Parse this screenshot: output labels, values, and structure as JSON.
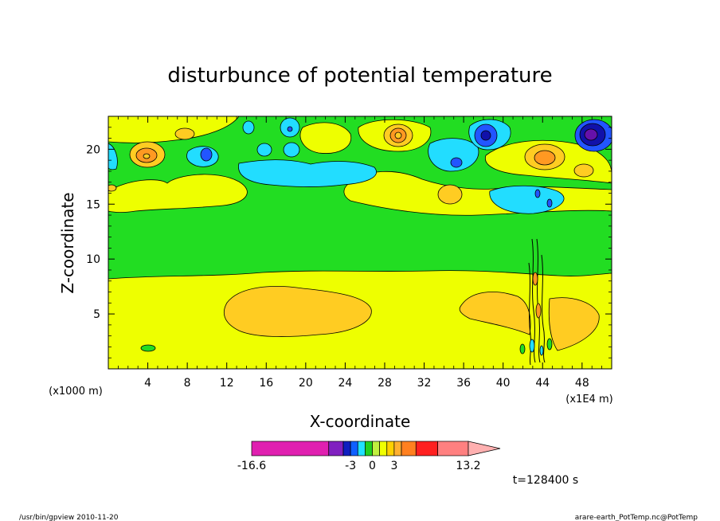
{
  "chart_data": {
    "type": "heatmap",
    "title": "disturbunce of potential temperature",
    "xlabel": "X-coordinate",
    "ylabel": "Z-coordinate",
    "x_unit_left": "(x1000 m)",
    "x_unit_right": "(x1E4 m)",
    "xlim": [
      0,
      51
    ],
    "ylim": [
      0,
      23
    ],
    "x_ticks": [
      4,
      8,
      12,
      16,
      20,
      24,
      28,
      32,
      36,
      40,
      44,
      48
    ],
    "y_ticks": [
      5,
      10,
      15,
      20
    ],
    "colorbar": {
      "levels": [
        -16.6,
        -3,
        0,
        3,
        13.2
      ],
      "tick_labels": [
        "-16.6",
        "-3",
        "0",
        "3",
        "13.2"
      ],
      "colors": [
        "#e020b0",
        "#8020c0",
        "#1020c0",
        "#1060ff",
        "#20e0ff",
        "#20d020",
        "#c0f040",
        "#f0ff00",
        "#ffd000",
        "#ffb030",
        "#ff8020",
        "#ff2020",
        "#ff8080",
        "#ffb0b0"
      ]
    },
    "field_levels": {
      "background_mid": "0 band (green)",
      "lower_layer": "small positive (yellow)",
      "warm_blob": "positive (orange)"
    }
  },
  "time_label": "t=128400 s",
  "footer": {
    "left": "/usr/bin/gpview  2010-11-20",
    "right": "arare-earth_PotTemp.nc@PotTemp"
  },
  "colors": {
    "green": "#22dd22",
    "yellow": "#eeff00",
    "orange": "#ffcc22",
    "dark_orange": "#ff9922",
    "cyan": "#22ddff",
    "blue": "#2255ff",
    "dark_blue": "#1111aa",
    "purple": "#6611aa"
  }
}
